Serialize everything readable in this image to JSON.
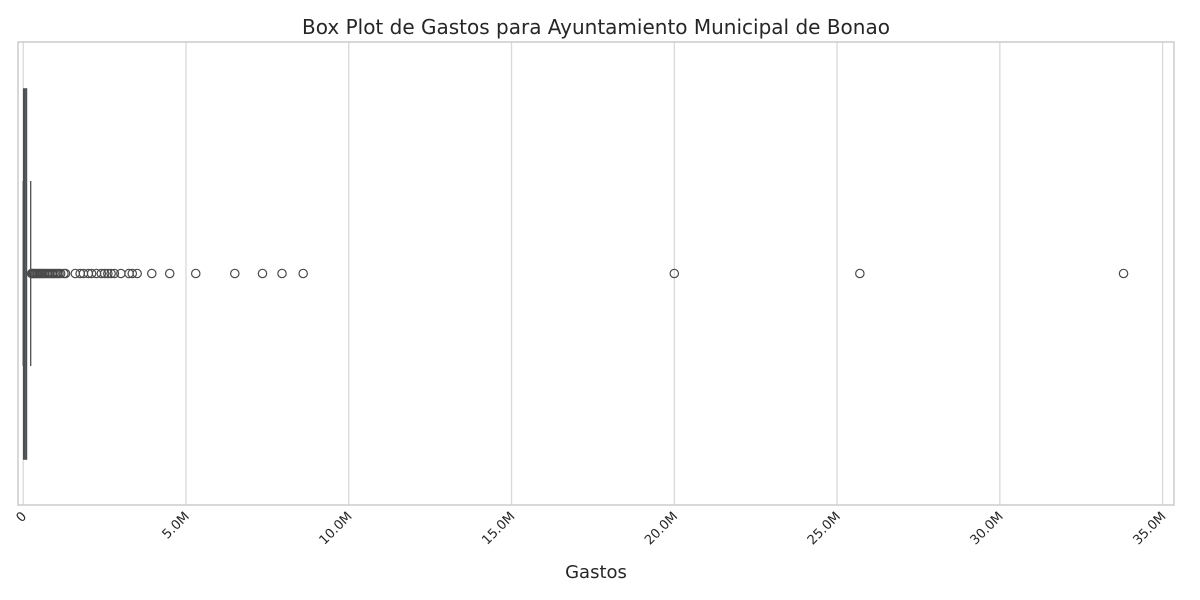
{
  "chart_data": {
    "type": "box",
    "title": "Box Plot de Gastos para Ayuntamiento Municipal de Bonao",
    "xlabel": "Gastos",
    "ylabel": "",
    "orientation": "horizontal",
    "xlim": [
      -160000,
      35350000
    ],
    "x_ticks": [
      0,
      5000000,
      10000000,
      15000000,
      20000000,
      25000000,
      30000000,
      35000000
    ],
    "x_tick_labels": [
      "0",
      "5.0M",
      "10.0M",
      "15.0M",
      "20.0M",
      "25.0M",
      "30.0M",
      "35.0M"
    ],
    "grid": true,
    "box": {
      "q1": 15000,
      "median": 45000,
      "q3": 100000,
      "whisker_low": 0,
      "whisker_high": 230000
    },
    "outliers": [
      260000,
      290000,
      320000,
      360000,
      400000,
      440000,
      480000,
      520000,
      560000,
      600000,
      650000,
      700000,
      750000,
      800000,
      850000,
      900000,
      950000,
      1000000,
      1050000,
      1100000,
      1150000,
      1250000,
      1300000,
      1600000,
      1750000,
      1850000,
      2000000,
      2100000,
      2250000,
      2400000,
      2500000,
      2600000,
      2700000,
      2800000,
      3000000,
      3250000,
      3350000,
      3500000,
      3950000,
      4500000,
      5300000,
      6500000,
      7350000,
      7950000,
      8600000,
      20000000,
      25700000,
      33800000
    ],
    "colors": {
      "grid": "#d9d9d9",
      "spine": "#cccccc",
      "box_edge": "#4f4f4f",
      "box_fill": "#5f7fae",
      "marker_edge": "#4a4a4a"
    }
  }
}
